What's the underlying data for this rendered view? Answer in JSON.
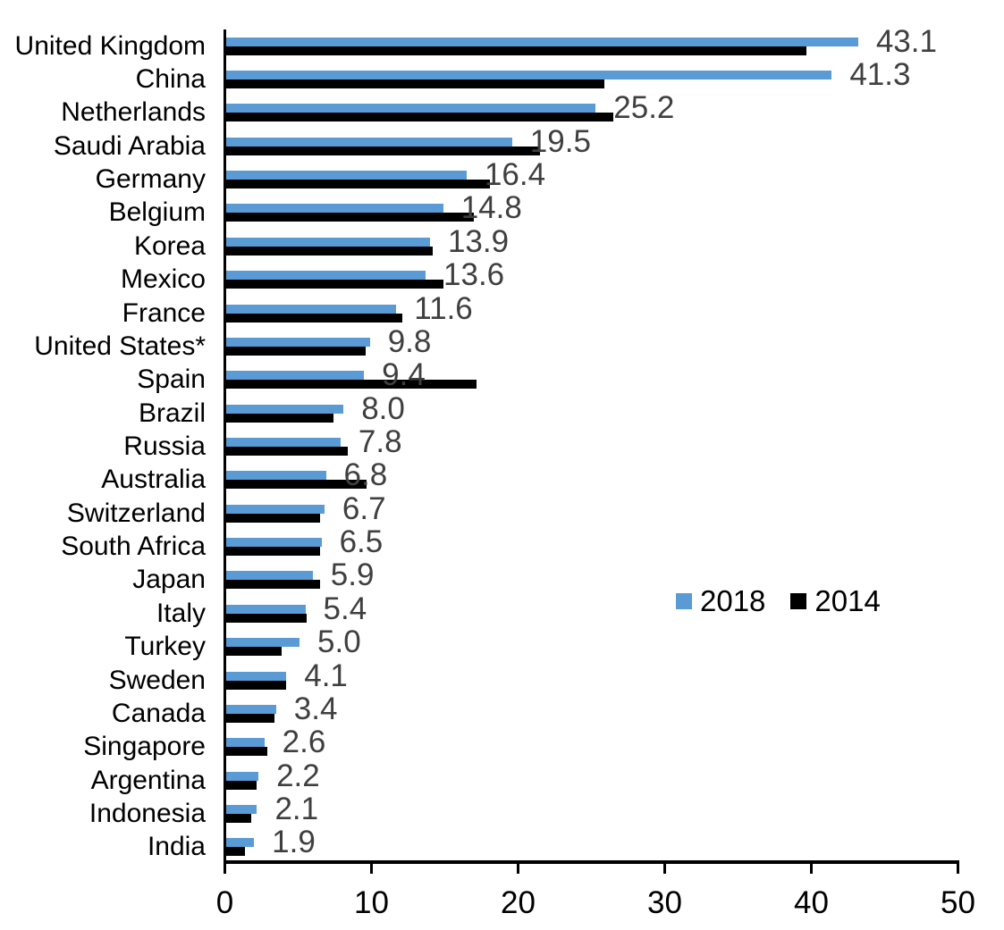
{
  "chart_data": {
    "type": "bar",
    "orientation": "horizontal",
    "title": "",
    "xlabel": "",
    "ylabel": "",
    "xlim": [
      0,
      50
    ],
    "x_ticks": [
      0,
      10,
      20,
      30,
      40,
      50
    ],
    "grid": false,
    "legend_position": "center-right",
    "axis_color": "#000000",
    "value_label_color": "#3F3F3F",
    "categories": [
      "United Kingdom",
      "China",
      "Netherlands",
      "Saudi Arabia",
      "Germany",
      "Belgium",
      "Korea",
      "Mexico",
      "France",
      "United States*",
      "Spain",
      "Brazil",
      "Russia",
      "Australia",
      "Switzerland",
      "South Africa",
      "Japan",
      "Italy",
      "Turkey",
      "Sweden",
      "Canada",
      "Singapore",
      "Argentina",
      "Indonesia",
      "India"
    ],
    "series": [
      {
        "name": "2018",
        "color": "#5B9BD5",
        "values": [
          43.1,
          41.3,
          25.2,
          19.5,
          16.4,
          14.8,
          13.9,
          13.6,
          11.6,
          9.8,
          9.4,
          8.0,
          7.8,
          6.8,
          6.7,
          6.5,
          5.9,
          5.4,
          5.0,
          4.1,
          3.4,
          2.6,
          2.2,
          2.1,
          1.9
        ]
      },
      {
        "name": "2014",
        "color": "#000000",
        "values": [
          39.6,
          25.8,
          26.4,
          21.4,
          18.0,
          16.9,
          14.1,
          14.8,
          12.0,
          9.5,
          17.1,
          7.3,
          8.3,
          9.6,
          6.4,
          6.4,
          6.4,
          5.5,
          3.8,
          4.1,
          3.3,
          2.8,
          2.1,
          1.7,
          1.3
        ]
      }
    ],
    "data_labels": [
      "43.1",
      "41.3",
      "25.2",
      "19.5",
      "16.4",
      "14.8",
      "13.9",
      "13.6",
      "11.6",
      "9.8",
      "9.4",
      "8.0",
      "7.8",
      "6.8",
      "6.7",
      "6.5",
      "5.9",
      "5.4",
      "5.0",
      "4.1",
      "3.4",
      "2.6",
      "2.2",
      "2.1",
      "1.9"
    ]
  }
}
